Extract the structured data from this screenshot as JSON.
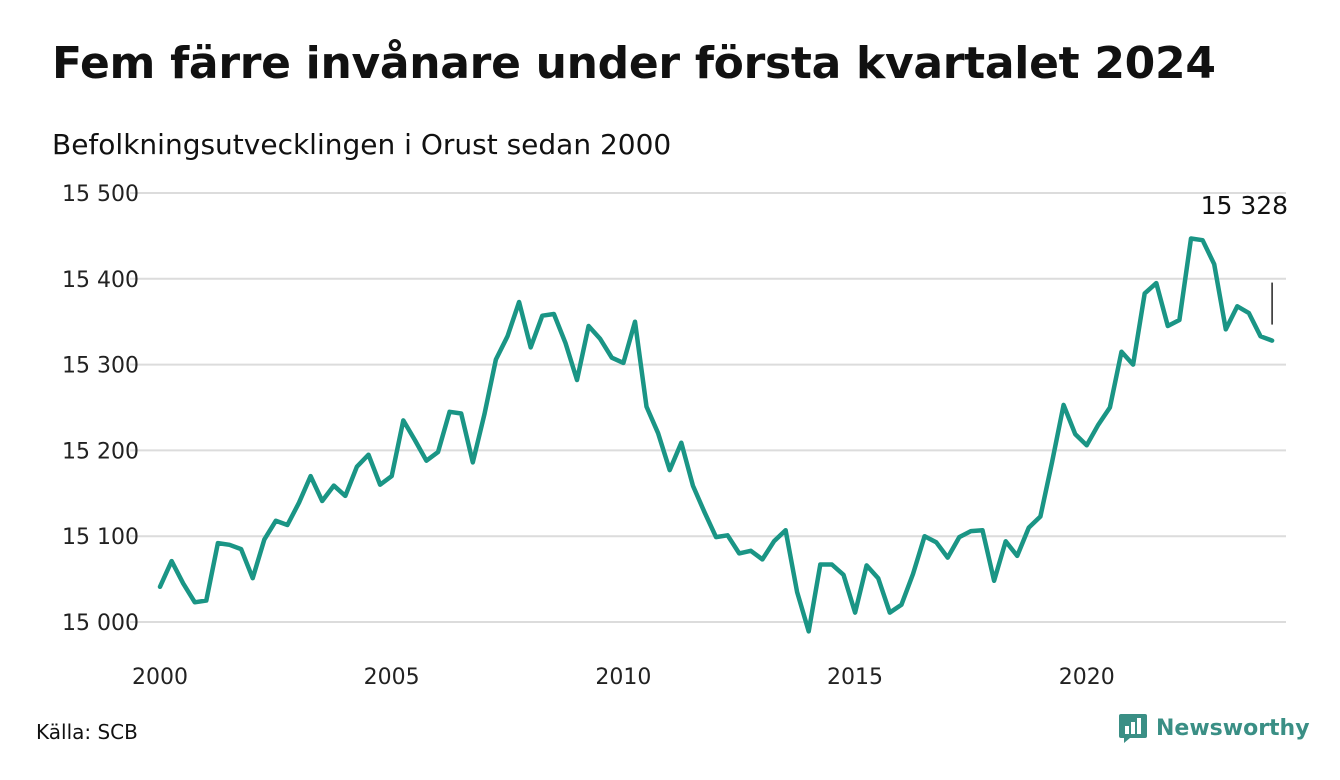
{
  "header": {
    "title": "Fem färre invånare under första kvartalet 2024",
    "subtitle": "Befolkningsutvecklingen i Orust sedan 2000"
  },
  "footer": {
    "source": "Källa: SCB",
    "brand": "Newsworthy",
    "brand_icon": "newsworthy-logo-icon",
    "brand_color": "#3a8f85"
  },
  "chart_data": {
    "type": "line",
    "title": "",
    "xlabel": "",
    "ylabel": "",
    "ylim": [
      15000,
      15500
    ],
    "xlim": [
      2000,
      2024.3
    ],
    "grid": true,
    "line_color": "#1a9585",
    "yticks": [
      15000,
      15100,
      15200,
      15300,
      15400,
      15500
    ],
    "ytick_labels": [
      "15 000",
      "15 100",
      "15 200",
      "15 300",
      "15 400",
      "15 500"
    ],
    "xticks": [
      2000,
      2005,
      2010,
      2015,
      2020
    ],
    "xtick_labels": [
      "2000",
      "2005",
      "2010",
      "2015",
      "2020"
    ],
    "annotation": {
      "label": "15 328",
      "value": 15328
    },
    "series": [
      {
        "values": [
          [
            2000.0,
            15041
          ],
          [
            2000.25,
            15071
          ],
          [
            2000.5,
            15045
          ],
          [
            2000.75,
            15023
          ],
          [
            2001.0,
            15025
          ],
          [
            2001.25,
            15092
          ],
          [
            2001.5,
            15090
          ],
          [
            2001.75,
            15085
          ],
          [
            2002.0,
            15051
          ],
          [
            2002.25,
            15096
          ],
          [
            2002.5,
            15118
          ],
          [
            2002.75,
            15113
          ],
          [
            2003.0,
            15139
          ],
          [
            2003.25,
            15170
          ],
          [
            2003.5,
            15141
          ],
          [
            2003.75,
            15159
          ],
          [
            2004.0,
            15147
          ],
          [
            2004.25,
            15181
          ],
          [
            2004.5,
            15195
          ],
          [
            2004.75,
            15160
          ],
          [
            2005.0,
            15170
          ],
          [
            2005.25,
            15235
          ],
          [
            2005.5,
            15212
          ],
          [
            2005.75,
            15188
          ],
          [
            2006.0,
            15198
          ],
          [
            2006.25,
            15245
          ],
          [
            2006.5,
            15243
          ],
          [
            2006.75,
            15186
          ],
          [
            2007.0,
            15242
          ],
          [
            2007.25,
            15306
          ],
          [
            2007.5,
            15333
          ],
          [
            2007.75,
            15373
          ],
          [
            2008.0,
            15320
          ],
          [
            2008.25,
            15357
          ],
          [
            2008.5,
            15359
          ],
          [
            2008.75,
            15325
          ],
          [
            2009.0,
            15282
          ],
          [
            2009.25,
            15345
          ],
          [
            2009.5,
            15330
          ],
          [
            2009.75,
            15308
          ],
          [
            2010.0,
            15302
          ],
          [
            2010.25,
            15350
          ],
          [
            2010.5,
            15251
          ],
          [
            2010.75,
            15220
          ],
          [
            2011.0,
            15177
          ],
          [
            2011.25,
            15209
          ],
          [
            2011.5,
            15159
          ],
          [
            2011.75,
            15128
          ],
          [
            2012.0,
            15099
          ],
          [
            2012.25,
            15101
          ],
          [
            2012.5,
            15080
          ],
          [
            2012.75,
            15083
          ],
          [
            2013.0,
            15073
          ],
          [
            2013.25,
            15094
          ],
          [
            2013.5,
            15107
          ],
          [
            2013.75,
            15035
          ],
          [
            2014.0,
            14989
          ],
          [
            2014.25,
            15067
          ],
          [
            2014.5,
            15067
          ],
          [
            2014.75,
            15055
          ],
          [
            2015.0,
            15011
          ],
          [
            2015.25,
            15066
          ],
          [
            2015.5,
            15051
          ],
          [
            2015.75,
            15011
          ],
          [
            2016.0,
            15020
          ],
          [
            2016.25,
            15056
          ],
          [
            2016.5,
            15100
          ],
          [
            2016.75,
            15093
          ],
          [
            2017.0,
            15075
          ],
          [
            2017.25,
            15099
          ],
          [
            2017.5,
            15106
          ],
          [
            2017.75,
            15107
          ],
          [
            2018.0,
            15048
          ],
          [
            2018.25,
            15094
          ],
          [
            2018.5,
            15077
          ],
          [
            2018.75,
            15110
          ],
          [
            2019.0,
            15123
          ],
          [
            2019.25,
            15186
          ],
          [
            2019.5,
            15253
          ],
          [
            2019.75,
            15219
          ],
          [
            2020.0,
            15206
          ],
          [
            2020.25,
            15230
          ],
          [
            2020.5,
            15250
          ],
          [
            2020.75,
            15315
          ],
          [
            2021.0,
            15300
          ],
          [
            2021.25,
            15383
          ],
          [
            2021.5,
            15395
          ],
          [
            2021.75,
            15345
          ],
          [
            2022.0,
            15352
          ],
          [
            2022.25,
            15447
          ],
          [
            2022.5,
            15445
          ],
          [
            2022.75,
            15417
          ],
          [
            2023.0,
            15341
          ],
          [
            2023.25,
            15368
          ],
          [
            2023.5,
            15360
          ],
          [
            2023.75,
            15333
          ],
          [
            2024.0,
            15328
          ]
        ]
      }
    ]
  }
}
